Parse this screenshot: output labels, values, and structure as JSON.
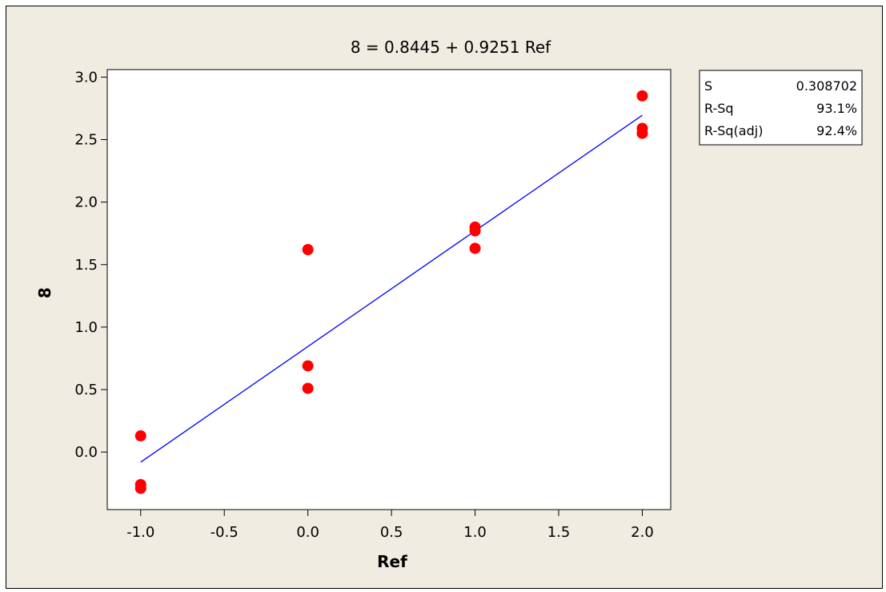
{
  "chart_data": {
    "type": "scatter",
    "title": "8 =  0.8445 + 0.9251 Ref",
    "xlabel": "Ref",
    "ylabel": "8",
    "xlim": [
      -1.2,
      2.17
    ],
    "ylim": [
      -0.46,
      3.06
    ],
    "xticks": [
      -1.0,
      -0.5,
      0.0,
      0.5,
      1.0,
      1.5,
      2.0
    ],
    "xtick_labels": [
      "-1.0",
      "-0.5",
      "0.0",
      "0.5",
      "1.0",
      "1.5",
      "2.0"
    ],
    "yticks": [
      0.0,
      0.5,
      1.0,
      1.5,
      2.0,
      2.5,
      3.0
    ],
    "ytick_labels": [
      "0.0",
      "0.5",
      "1.0",
      "1.5",
      "2.0",
      "2.5",
      "3.0"
    ],
    "series": [
      {
        "color": "#ff0000",
        "marker": "circle",
        "points": [
          {
            "x": -1,
            "y": 0.13
          },
          {
            "x": -1,
            "y": -0.26
          },
          {
            "x": -1,
            "y": -0.29
          },
          {
            "x": 0,
            "y": 1.62
          },
          {
            "x": 0,
            "y": 0.69
          },
          {
            "x": 0,
            "y": 0.51
          },
          {
            "x": 1,
            "y": 1.8
          },
          {
            "x": 1,
            "y": 1.77
          },
          {
            "x": 1,
            "y": 1.63
          },
          {
            "x": 2,
            "y": 2.85
          },
          {
            "x": 2,
            "y": 2.59
          },
          {
            "x": 2,
            "y": 2.55
          }
        ]
      }
    ],
    "fit_line": {
      "intercept": 0.8445,
      "slope": 0.9251,
      "x_range": [
        -1,
        2
      ],
      "color": "#0000ff"
    },
    "stats_box": [
      {
        "label": "S",
        "value": "0.308702"
      },
      {
        "label": "R-Sq",
        "value": "93.1%"
      },
      {
        "label": "R-Sq(adj)",
        "value": "92.4%"
      }
    ],
    "grid": false,
    "colors": {
      "panel_background": "#f0ece1",
      "plot_background": "#ffffff",
      "points": "#ff0000",
      "fit_line": "#0000ff"
    }
  }
}
